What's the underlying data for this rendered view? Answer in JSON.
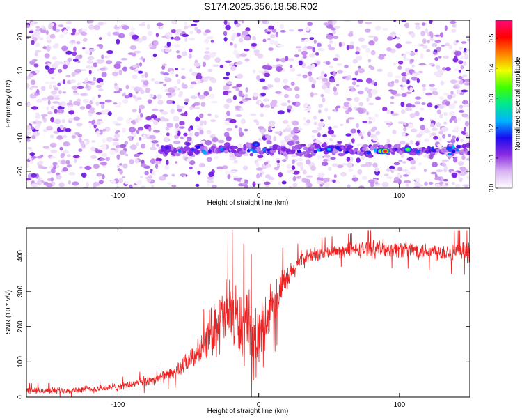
{
  "title": "S174.2025.356.18.58.R02",
  "colors": {
    "line": "#ee2222",
    "frame": "#000000",
    "colorbar_stops": [
      "#ffffff",
      "#d9b3f2",
      "#8a2be2",
      "#1a0af0",
      "#00b4ff",
      "#00e890",
      "#40ff00",
      "#f0ff00",
      "#ff8000",
      "#ff0000",
      "#ff0a78"
    ]
  },
  "chart_data": [
    {
      "type": "heatmap",
      "title": "S174.2025.356.18.58.R02",
      "xlabel": "Height of straight line (km)",
      "ylabel": "Frequency (Hz)",
      "xlim": [
        -165,
        150
      ],
      "ylim": [
        -25,
        25
      ],
      "xticks": [
        -100,
        0,
        100
      ],
      "yticks": [
        -20,
        -10,
        0,
        10,
        20
      ],
      "colorbar": {
        "label": "Normalized spectral amplitude",
        "range": [
          0.0,
          0.56
        ],
        "ticks": [
          0.0,
          0.1,
          0.2,
          0.3,
          0.4,
          0.5
        ]
      },
      "features": [
        {
          "description": "horizontal signal band",
          "frequency_hz": -13.5,
          "x_start_km": -70,
          "x_end_km": 150
        },
        {
          "x_km": -2,
          "y_hz": -12,
          "amplitude": 0.2
        },
        {
          "x_km": 50,
          "y_hz": -13.5,
          "amplitude": 0.24
        },
        {
          "x_km": 87,
          "y_hz": -14,
          "amplitude": 0.42
        },
        {
          "x_km": 90,
          "y_hz": -14,
          "amplitude": 0.55
        },
        {
          "x_km": 106,
          "y_hz": -13.5,
          "amplitude": 0.35
        },
        {
          "x_km": -65,
          "y_hz": -13,
          "amplitude": 0.15
        }
      ]
    },
    {
      "type": "line",
      "xlabel": "Height of straight line (km)",
      "ylabel": "SNR (10 * v/v)",
      "xlim": [
        -165,
        150
      ],
      "ylim": [
        0,
        480
      ],
      "xticks": [
        -100,
        0,
        100
      ],
      "yticks": [
        0,
        100,
        200,
        300,
        400
      ],
      "series": [
        {
          "name": "SNR",
          "trend_x": [
            -165,
            -150,
            -130,
            -110,
            -95,
            -80,
            -70,
            -60,
            -50,
            -40,
            -35,
            -30,
            -25,
            -20,
            -15,
            -10,
            -5,
            0,
            5,
            10,
            15,
            20,
            25,
            30,
            40,
            60,
            80,
            100,
            120,
            140,
            150
          ],
          "trend_y": [
            18,
            18,
            20,
            25,
            32,
            45,
            55,
            70,
            100,
            140,
            180,
            210,
            220,
            250,
            210,
            200,
            170,
            150,
            220,
            270,
            300,
            330,
            360,
            390,
            405,
            415,
            420,
            420,
            415,
            410,
            410
          ],
          "noise_amplitude": [
            12,
            12,
            12,
            14,
            15,
            18,
            20,
            25,
            35,
            50,
            80,
            110,
            120,
            130,
            130,
            130,
            130,
            130,
            110,
            90,
            70,
            50,
            35,
            30,
            25,
            25,
            30,
            30,
            30,
            35,
            35
          ]
        }
      ]
    }
  ]
}
